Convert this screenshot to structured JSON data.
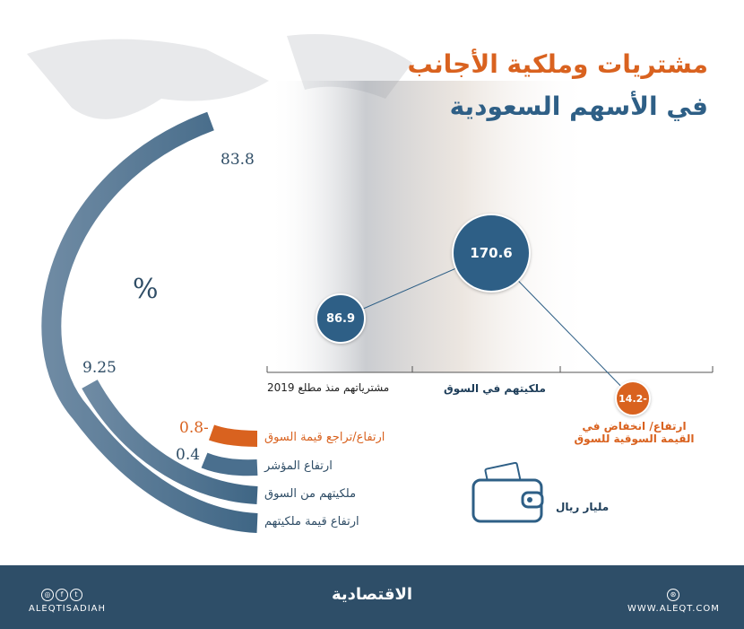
{
  "header": {
    "title_line1": "مشتريات وملكية الأجانب",
    "title_line2": "في الأسهم السعودية"
  },
  "colors": {
    "blue": "#4a6f8e",
    "dark_blue": "#2e5f86",
    "orange": "#d9621f",
    "footer": "#2e4e68"
  },
  "chart_data": [
    {
      "type": "radial-bar",
      "unit_label": "%",
      "series": [
        {
          "label": "ارتفاع قيمة ملكيتهم",
          "value": 83.8,
          "color": "#4a6f8e"
        },
        {
          "label": "ملكيتهم من السوق",
          "value": 9.25,
          "color": "#4a6f8e"
        },
        {
          "label": "ارتفاع المؤشر",
          "value": 0.4,
          "color": "#4a6f8e"
        },
        {
          "label": "ارتفاع/تراجع قيمة السوق",
          "value": -0.8,
          "value_text": "0.8-",
          "color": "#d9621f"
        }
      ],
      "value_texts": {
        "v0": "83.8",
        "v1": "9.25",
        "v2": "0.4",
        "v3": "0.8-"
      }
    },
    {
      "type": "bubble",
      "unit": "مليار ريال",
      "categories": [
        "مشترياتهم منذ مطلع 2019",
        "ملكيتهم في السوق",
        "ارتفاع/ انخفاض في القيمة السوقية للسوق"
      ],
      "values": [
        86.9,
        170.6,
        -14.2
      ],
      "value_texts": [
        "86.9",
        "170.6",
        "14.2-"
      ],
      "label3_line1": "ارتفاع/ انخفاض في",
      "label3_line2": "القيمة السوقية للسوق"
    }
  ],
  "footer": {
    "logo": "الاقتصادية",
    "handle": "ALEQTISADIAH",
    "website": "WWW.ALEQT.COM",
    "social_icons": [
      "instagram-icon",
      "facebook-icon",
      "twitter-icon"
    ],
    "web_icon": "globe-icon"
  }
}
